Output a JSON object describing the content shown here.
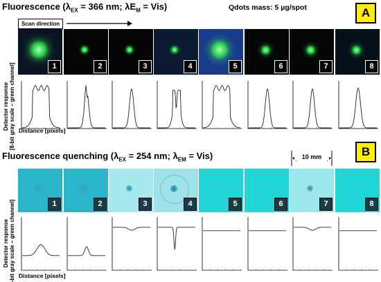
{
  "panel_a": {
    "title_main": "Fluorescence (",
    "lambda": "λ",
    "ex_sub": "EX",
    "ex_value": " = 366 nm; ",
    "em_symbol": "λE",
    "em_sub": "M",
    "em_value": " = Vis)",
    "qdots_mass": "Qdots mass: 5 µg/spot",
    "badge": "A",
    "scan_direction": "Scan direction",
    "tiles": [
      {
        "label": "1",
        "bg": "#0a1322",
        "spot": "#2fd54a",
        "size": "large"
      },
      {
        "label": "2",
        "bg": "#050505",
        "spot": "#1fcf3f",
        "size": "small"
      },
      {
        "label": "3",
        "bg": "#050505",
        "spot": "#1fcf3f",
        "size": "small"
      },
      {
        "label": "4",
        "bg": "#0a1a30",
        "spot": "#1fcf3f",
        "size": "small"
      },
      {
        "label": "5",
        "bg": "#1a3a8c",
        "spot": "#34d856",
        "size": "large"
      },
      {
        "label": "6",
        "bg": "#050505",
        "spot": "#1fcf3f",
        "size": "medium"
      },
      {
        "label": "7",
        "bg": "#050505",
        "spot": "#1fcf3f",
        "size": "medium"
      },
      {
        "label": "8",
        "bg": "#06101a",
        "spot": "#1fcf3f",
        "size": "medium"
      }
    ]
  },
  "panel_b": {
    "title_main": "Fluorescence quenching (",
    "lambda": "λ",
    "ex_sub": "EX",
    "ex_value": " = 254 nm; ",
    "em_symbol": "λ",
    "em_sub": "EM",
    "em_value": " = Vis)",
    "badge": "B",
    "scale_label": "10 mm",
    "tiles": [
      {
        "label": "1",
        "bg": "#2ab6c8",
        "spot": "#36a3c0",
        "style": "quench-faint"
      },
      {
        "label": "2",
        "bg": "#2ab6c8",
        "spot": "#36a3c0",
        "style": "quench-faint"
      },
      {
        "label": "3",
        "bg": "#a8e9ee",
        "spot": "#3aa0b8",
        "style": "quench-dot"
      },
      {
        "label": "4",
        "bg": "#a0e2ea",
        "spot": "#2a90b0",
        "style": "quench-ring"
      },
      {
        "label": "5",
        "bg": "#22d6d8",
        "spot": "#22d6d8",
        "style": "none"
      },
      {
        "label": "6",
        "bg": "#22d6d8",
        "spot": "#22d6d8",
        "style": "none"
      },
      {
        "label": "7",
        "bg": "#9ce7ec",
        "spot": "#2f9bb5",
        "style": "quench-dot"
      },
      {
        "label": "8",
        "bg": "#22d6d8",
        "spot": "#22d6d8",
        "style": "none"
      }
    ]
  },
  "ylabel_line1": "Detector response",
  "ylabel_line2": "[8-bit gray scale – green channel]",
  "xlabel": "Distance [pixels]",
  "plot_shapes": {
    "a": [
      "wide-plateau",
      "narrow-twin",
      "narrow",
      "twin-peak",
      "wide-plateau",
      "narrow",
      "narrow",
      "narrow-round"
    ],
    "b": [
      "hump",
      "small-hump",
      "shallow-dip",
      "sharp-dip",
      "flat",
      "flat",
      "shallow-dip",
      "flat"
    ]
  },
  "colors": {
    "badge_fill": "#ffef00",
    "curve": "#222222",
    "axis": "#000000"
  }
}
